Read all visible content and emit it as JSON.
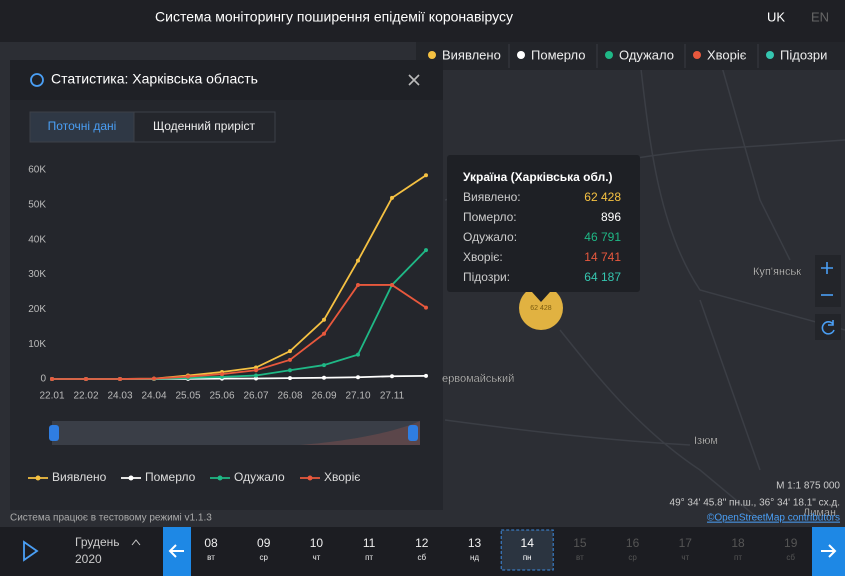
{
  "header": {
    "title": "Система моніторингу поширення епідемії коронавірусу",
    "languages": [
      "UK",
      "EN"
    ]
  },
  "legend": {
    "items": [
      {
        "label": "Виявлено",
        "color": "#f5c142"
      },
      {
        "label": "Померло",
        "color": "#ffffff"
      },
      {
        "label": "Одужало",
        "color": "#1fb886"
      },
      {
        "label": "Хворіє",
        "color": "#e8583d"
      },
      {
        "label": "Підозри",
        "color": "#35c6b0"
      }
    ]
  },
  "panel": {
    "title": "Статистика: Харківська область",
    "tabs": [
      "Поточні дані",
      "Щоденний приріст"
    ]
  },
  "chart_data": {
    "type": "line",
    "categories": [
      "22.01",
      "22.02",
      "24.03",
      "24.04",
      "25.05",
      "25.06",
      "26.07",
      "26.08",
      "26.09",
      "27.10",
      "27.11",
      null
    ],
    "series": [
      {
        "name": "Виявлено",
        "color": "#f5c142",
        "values": [
          0,
          0,
          0,
          100,
          1000,
          2000,
          3300,
          8000,
          17000,
          34000,
          52000,
          58500
        ]
      },
      {
        "name": "Померло",
        "color": "#ffffff",
        "values": [
          0,
          0,
          0,
          0,
          50,
          100,
          150,
          250,
          350,
          500,
          800,
          900
        ]
      },
      {
        "name": "Одужало",
        "color": "#1fb886",
        "values": [
          0,
          0,
          0,
          0,
          300,
          600,
          1000,
          2500,
          4000,
          7000,
          27000,
          37000
        ]
      },
      {
        "name": "Хворіє",
        "color": "#e8583d",
        "values": [
          0,
          0,
          0,
          100,
          700,
          1400,
          2500,
          5500,
          13000,
          27000,
          27000,
          20500
        ]
      }
    ],
    "ylim": [
      0,
      60000
    ],
    "yticks": [
      0,
      {
        "value": 10000,
        "label": "10K"
      },
      {
        "value": 20000,
        "label": "20K"
      },
      {
        "value": 30000,
        "label": "30K"
      },
      {
        "value": 40000,
        "label": "40K"
      },
      {
        "value": 50000,
        "label": "50K"
      },
      {
        "value": 60000,
        "label": "60K"
      }
    ],
    "grid": false,
    "legend": "bottom"
  },
  "tooltip": {
    "title": "Україна (Харківська обл.)",
    "rows": [
      {
        "label": "Виявлено:",
        "value": "62 428",
        "color": "#f5c142"
      },
      {
        "label": "Померло:",
        "value": "896",
        "color": "#ffffff"
      },
      {
        "label": "Одужало:",
        "value": "46 791",
        "color": "#1fb886"
      },
      {
        "label": "Хворіє:",
        "value": "14 741",
        "color": "#e8583d"
      },
      {
        "label": "Підозри:",
        "value": "64 187",
        "color": "#35c6b0"
      }
    ]
  },
  "map": {
    "labels": [
      "Куп'янськ",
      "ервомайський",
      "Ізюм",
      "Лиман"
    ],
    "marker": "62 428",
    "scale": "М 1:1 875 000",
    "coordinates": "49° 34' 45.8\" пн.ш., 36° 34' 18.1\" сх.д.",
    "attribution": "©OpenStreetMap contributors",
    "status": "Система працює в тестовому режимі v1.1.3"
  },
  "timeline": {
    "month": "Грудень",
    "year": "2020",
    "selected": 6,
    "days": [
      {
        "day": "08",
        "weekday": "вт"
      },
      {
        "day": "09",
        "weekday": "ср"
      },
      {
        "day": "10",
        "weekday": "чт"
      },
      {
        "day": "11",
        "weekday": "пт"
      },
      {
        "day": "12",
        "weekday": "сб"
      },
      {
        "day": "13",
        "weekday": "нд"
      },
      {
        "day": "14",
        "weekday": "пн"
      },
      {
        "day": "15",
        "weekday": "вт"
      },
      {
        "day": "16",
        "weekday": "ср"
      },
      {
        "day": "17",
        "weekday": "чт"
      },
      {
        "day": "18",
        "weekday": "пт"
      },
      {
        "day": "19",
        "weekday": "сб"
      }
    ]
  }
}
